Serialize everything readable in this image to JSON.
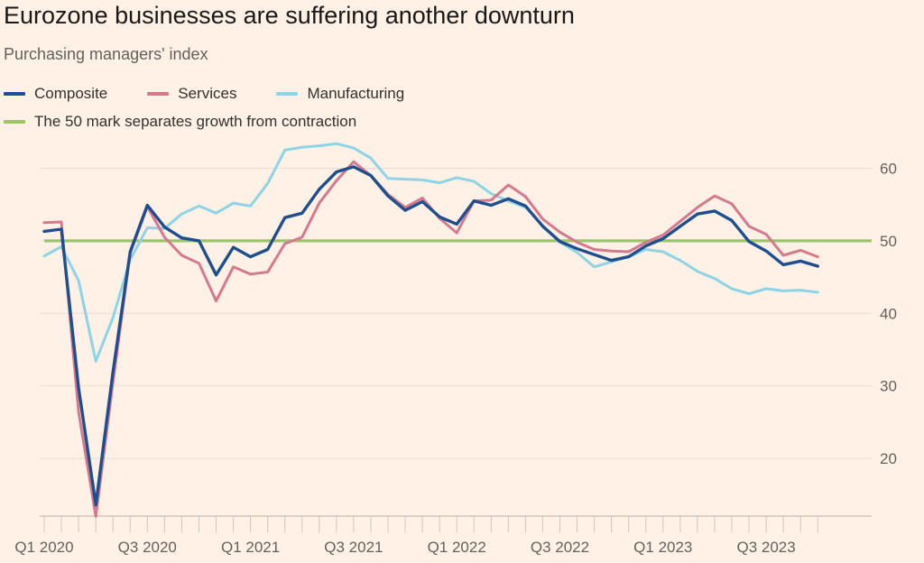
{
  "title": "Eurozone businesses are suffering another downturn",
  "subtitle": "Purchasing managers' index",
  "colors": {
    "background": "#fff1e5",
    "composite": "#1f4e8f",
    "services": "#d57a8e",
    "manufacturing": "#8ed3e6",
    "threshold": "#9cc46a",
    "grid": "#e7ddd3"
  },
  "legend": {
    "composite": "Composite",
    "services": "Services",
    "manufacturing": "Manufacturing",
    "threshold": "The 50 mark separates growth from contraction"
  },
  "chart_data": {
    "type": "line",
    "title": "Eurozone businesses are suffering another downturn",
    "subtitle": "Purchasing managers' index",
    "xlabel": "",
    "ylabel": "",
    "ylim": [
      12,
      64
    ],
    "yticks": [
      20,
      30,
      40,
      50,
      60
    ],
    "grid": true,
    "x_start": "Jan 2020",
    "x_tick_labels": [
      "Q1 2020",
      "Q3 2020",
      "Q1 2021",
      "Q3 2021",
      "Q1 2022",
      "Q3 2022",
      "Q1 2023",
      "Q3 2023"
    ],
    "x_tick_label_indices": [
      0,
      6,
      12,
      18,
      24,
      30,
      36,
      42
    ],
    "threshold": 50,
    "series": [
      {
        "name": "Composite",
        "values": [
          51.3,
          51.6,
          29.7,
          13.6,
          31.9,
          48.5,
          54.9,
          51.9,
          50.4,
          50.0,
          45.3,
          49.1,
          47.8,
          48.8,
          53.2,
          53.8,
          57.1,
          59.5,
          60.2,
          59.0,
          56.2,
          54.2,
          55.4,
          53.3,
          52.3,
          55.5,
          54.9,
          55.8,
          54.8,
          52.0,
          49.9,
          48.9,
          48.1,
          47.3,
          47.8,
          49.3,
          50.3,
          52.0,
          53.7,
          54.1,
          52.8,
          49.9,
          48.6,
          46.7,
          47.2,
          46.5
        ]
      },
      {
        "name": "Services",
        "values": [
          52.5,
          52.6,
          26.4,
          12.0,
          30.5,
          48.3,
          54.7,
          50.5,
          48.0,
          46.9,
          41.7,
          46.4,
          45.4,
          45.7,
          49.6,
          50.5,
          55.2,
          58.3,
          60.9,
          59.0,
          56.4,
          54.6,
          55.9,
          53.1,
          51.1,
          55.5,
          55.6,
          57.7,
          56.1,
          53.0,
          51.2,
          49.8,
          48.8,
          48.6,
          48.5,
          49.8,
          50.8,
          52.7,
          54.6,
          56.2,
          55.1,
          52.0,
          50.9,
          48.0,
          48.7,
          47.8
        ]
      },
      {
        "name": "Manufacturing",
        "values": [
          47.9,
          49.2,
          44.5,
          33.4,
          39.4,
          47.4,
          51.8,
          51.7,
          53.7,
          54.8,
          53.8,
          55.2,
          54.8,
          57.9,
          62.5,
          62.9,
          63.1,
          63.4,
          62.8,
          61.4,
          58.6,
          58.5,
          58.4,
          58.0,
          58.7,
          58.2,
          56.5,
          55.5,
          54.6,
          52.1,
          49.8,
          48.4,
          46.4,
          47.1,
          47.8,
          48.8,
          48.5,
          47.3,
          45.8,
          44.8,
          43.4,
          42.7,
          43.4,
          43.1,
          43.2,
          42.9
        ]
      }
    ]
  }
}
